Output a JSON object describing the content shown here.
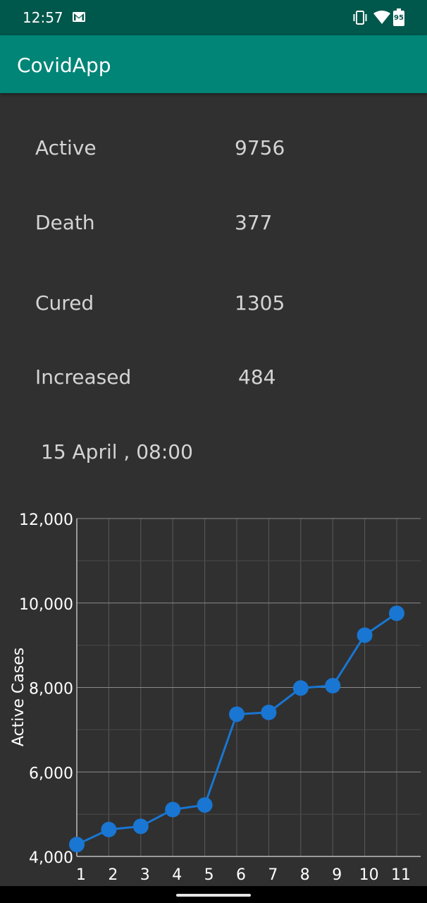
{
  "status_bar": {
    "time": "12:57",
    "battery": "95",
    "icons": [
      "gmail-icon",
      "vibrate-icon",
      "wifi-icon",
      "battery-icon"
    ]
  },
  "app_bar": {
    "title": "CovidApp"
  },
  "stats": [
    {
      "label": "Active",
      "value": "9756"
    },
    {
      "label": "Death",
      "value": "377"
    },
    {
      "label": "Cured",
      "value": "1305"
    },
    {
      "label": "Increased",
      "value": "484"
    }
  ],
  "updated": "15 April , 08:00",
  "colors": {
    "status_bar": "#00574b",
    "app_bar": "#008577",
    "background": "#303030",
    "series": "#1976d2"
  },
  "chart_data": {
    "type": "line",
    "ylabel": "Active Cases",
    "xlabel": "",
    "x": [
      1,
      2,
      3,
      4,
      5,
      6,
      7,
      8,
      9,
      10,
      11
    ],
    "x_tick_labels": [
      "1",
      "2",
      "3",
      "4",
      "5",
      "6",
      "7",
      "8",
      "9",
      "10",
      "11",
      "1"
    ],
    "y_tick_labels": [
      "4,000",
      "6,000",
      "8,000",
      "10,000",
      "12,000"
    ],
    "y_ticks": [
      4000,
      6000,
      8000,
      10000,
      12000
    ],
    "ylim": [
      4000,
      12000
    ],
    "xlim": [
      1,
      12
    ],
    "grid": true,
    "series": [
      {
        "values": [
          4281,
          4637,
          4713,
          5110,
          5218,
          7367,
          7409,
          7987,
          8043,
          9238,
          9756
        ]
      }
    ]
  }
}
